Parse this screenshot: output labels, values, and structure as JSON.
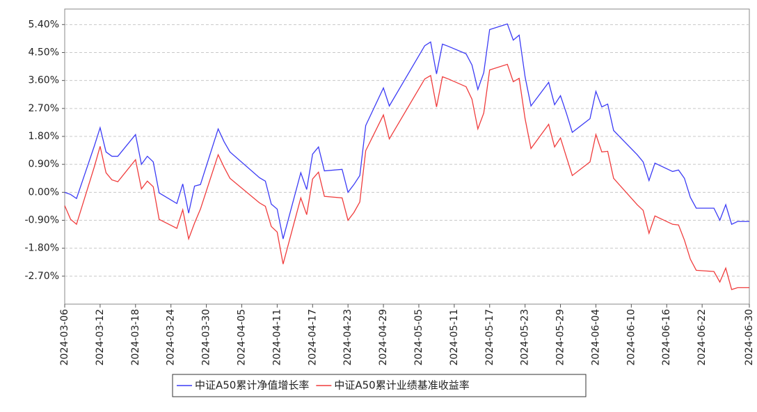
{
  "chart_data": {
    "type": "line",
    "x": [
      "2024-03-06",
      "2024-03-07",
      "2024-03-08",
      "2024-03-11",
      "2024-03-12",
      "2024-03-13",
      "2024-03-14",
      "2024-03-15",
      "2024-03-18",
      "2024-03-19",
      "2024-03-20",
      "2024-03-21",
      "2024-03-22",
      "2024-03-25",
      "2024-03-26",
      "2024-03-27",
      "2024-03-28",
      "2024-03-29",
      "2024-04-01",
      "2024-04-02",
      "2024-04-03",
      "2024-04-08",
      "2024-04-09",
      "2024-04-10",
      "2024-04-11",
      "2024-04-12",
      "2024-04-15",
      "2024-04-16",
      "2024-04-17",
      "2024-04-18",
      "2024-04-19",
      "2024-04-22",
      "2024-04-23",
      "2024-04-24",
      "2024-04-25",
      "2024-04-26",
      "2024-04-29",
      "2024-04-30",
      "2024-05-06",
      "2024-05-07",
      "2024-05-08",
      "2024-05-09",
      "2024-05-10",
      "2024-05-13",
      "2024-05-14",
      "2024-05-15",
      "2024-05-16",
      "2024-05-17",
      "2024-05-20",
      "2024-05-21",
      "2024-05-22",
      "2024-05-23",
      "2024-05-24",
      "2024-05-27",
      "2024-05-28",
      "2024-05-29",
      "2024-05-30",
      "2024-05-31",
      "2024-06-03",
      "2024-06-04",
      "2024-06-05",
      "2024-06-06",
      "2024-06-07",
      "2024-06-11",
      "2024-06-12",
      "2024-06-13",
      "2024-06-14",
      "2024-06-17",
      "2024-06-18",
      "2024-06-19",
      "2024-06-20",
      "2024-06-21",
      "2024-06-24",
      "2024-06-25",
      "2024-06-26",
      "2024-06-27",
      "2024-06-28",
      "2024-06-30"
    ],
    "series": [
      {
        "name": "中证A50累计净值增长率",
        "color": "#3b3bf5",
        "values": [
          0.0,
          -0.07,
          -0.2,
          1.48,
          2.08,
          1.3,
          1.16,
          1.16,
          1.86,
          0.9,
          1.16,
          0.98,
          -0.02,
          -0.36,
          0.27,
          -0.67,
          0.2,
          0.25,
          2.04,
          1.63,
          1.3,
          0.47,
          0.36,
          -0.38,
          -0.54,
          -1.5,
          0.63,
          0.09,
          1.23,
          1.46,
          0.69,
          0.74,
          0.0,
          0.25,
          0.54,
          2.15,
          3.36,
          2.78,
          4.72,
          4.84,
          3.81,
          4.77,
          4.7,
          4.46,
          4.1,
          3.31,
          3.85,
          5.24,
          5.42,
          4.9,
          5.06,
          3.72,
          2.78,
          3.54,
          2.82,
          3.11,
          2.55,
          1.93,
          2.37,
          3.25,
          2.75,
          2.84,
          1.99,
          1.21,
          0.98,
          0.38,
          0.94,
          0.67,
          0.72,
          0.45,
          -0.16,
          -0.51,
          -0.51,
          -0.9,
          -0.4,
          -1.03,
          -0.94,
          -0.94
        ]
      },
      {
        "name": "中证A50累计业绩基准收益率",
        "color": "#f03c3c",
        "values": [
          -0.43,
          -0.87,
          -1.03,
          0.81,
          1.48,
          0.63,
          0.4,
          0.34,
          1.05,
          0.11,
          0.36,
          0.18,
          -0.87,
          -1.16,
          -0.56,
          -1.5,
          -0.99,
          -0.54,
          1.21,
          0.81,
          0.45,
          -0.34,
          -0.45,
          -1.1,
          -1.28,
          -2.31,
          -0.18,
          -0.72,
          0.43,
          0.65,
          -0.13,
          -0.18,
          -0.9,
          -0.65,
          -0.31,
          1.34,
          2.49,
          1.72,
          3.65,
          3.76,
          2.75,
          3.72,
          3.65,
          3.4,
          3.0,
          2.04,
          2.55,
          3.94,
          4.12,
          3.56,
          3.67,
          2.37,
          1.41,
          2.19,
          1.46,
          1.75,
          1.14,
          0.54,
          0.98,
          1.86,
          1.3,
          1.32,
          0.45,
          -0.4,
          -0.58,
          -1.32,
          -0.76,
          -1.03,
          -1.05,
          -1.54,
          -2.15,
          -2.51,
          -2.55,
          -2.89,
          -2.44,
          -3.13,
          -3.07,
          -3.07
        ]
      }
    ],
    "xlim": [
      "2024-03-06",
      "2024-06-30"
    ],
    "xticks": [
      "2024-03-06",
      "2024-03-12",
      "2024-03-18",
      "2024-03-24",
      "2024-03-30",
      "2024-04-05",
      "2024-04-11",
      "2024-04-17",
      "2024-04-23",
      "2024-04-29",
      "2024-05-05",
      "2024-05-11",
      "2024-05-17",
      "2024-05-23",
      "2024-05-29",
      "2024-06-04",
      "2024-06-10",
      "2024-06-16",
      "2024-06-22",
      "2024-06-30"
    ],
    "ylim": [
      -3.6,
      5.9
    ],
    "yticks": [
      {
        "value": 5.4,
        "label": "5.40%"
      },
      {
        "value": 4.5,
        "label": "4.50%"
      },
      {
        "value": 3.6,
        "label": "3.60%"
      },
      {
        "value": 2.7,
        "label": "2.70%"
      },
      {
        "value": 1.8,
        "label": "1.80%"
      },
      {
        "value": 0.9,
        "label": "0.90%"
      },
      {
        "value": 0,
        "label": "0.00%"
      },
      {
        "value": -0.9,
        "label": "-0.90%"
      },
      {
        "value": -1.8,
        "label": "-1.80%"
      },
      {
        "value": -2.7,
        "label": "-2.70%"
      }
    ],
    "grid": true
  }
}
